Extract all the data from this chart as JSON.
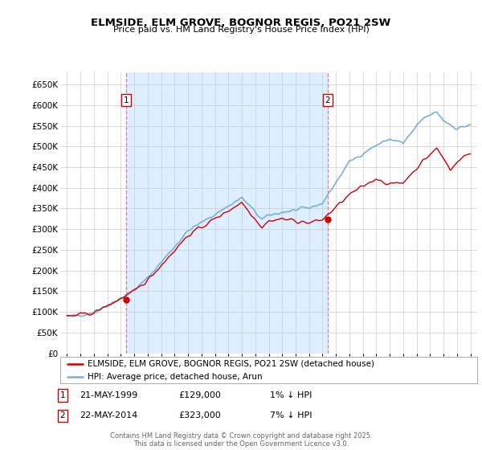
{
  "title": "ELMSIDE, ELM GROVE, BOGNOR REGIS, PO21 2SW",
  "subtitle": "Price paid vs. HM Land Registry's House Price Index (HPI)",
  "legend_label_red": "ELMSIDE, ELM GROVE, BOGNOR REGIS, PO21 2SW (detached house)",
  "legend_label_blue": "HPI: Average price, detached house, Arun",
  "footer": "Contains HM Land Registry data © Crown copyright and database right 2025.\nThis data is licensed under the Open Government Licence v3.0.",
  "annotation1_label": "1",
  "annotation1_date": "21-MAY-1999",
  "annotation1_price": "£129,000",
  "annotation1_hpi": "1% ↓ HPI",
  "annotation2_label": "2",
  "annotation2_date": "22-MAY-2014",
  "annotation2_price": "£323,000",
  "annotation2_hpi": "7% ↓ HPI",
  "sale1_x": 1999.38,
  "sale1_y": 129000,
  "sale2_x": 2014.38,
  "sale2_y": 323000,
  "ylim": [
    0,
    680000
  ],
  "xlim": [
    1994.5,
    2025.5
  ],
  "ytick_vals": [
    0,
    50000,
    100000,
    150000,
    200000,
    250000,
    300000,
    350000,
    400000,
    450000,
    500000,
    550000,
    600000,
    650000
  ],
  "xticks": [
    1995,
    1996,
    1997,
    1998,
    1999,
    2000,
    2001,
    2002,
    2003,
    2004,
    2005,
    2006,
    2007,
    2008,
    2009,
    2010,
    2011,
    2012,
    2013,
    2014,
    2015,
    2016,
    2017,
    2018,
    2019,
    2020,
    2021,
    2022,
    2023,
    2024,
    2025
  ],
  "red_color": "#cc0000",
  "blue_color": "#7ab0d4",
  "vline_color": "#e08080",
  "shade_color": "#ddeeff",
  "grid_color": "#cccccc",
  "background_color": "#ffffff"
}
